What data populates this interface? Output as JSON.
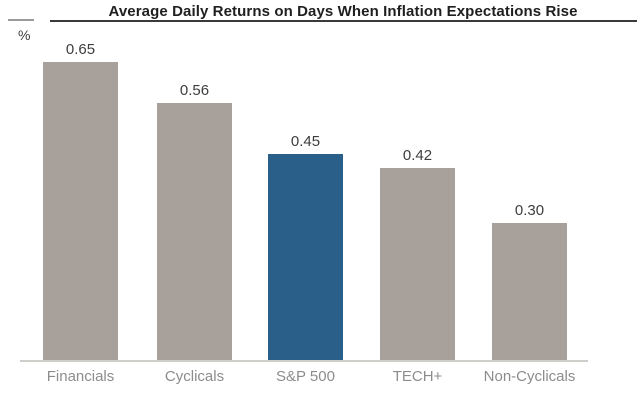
{
  "chart": {
    "title": "Average Daily Returns on Days When Inflation Expectations Rise",
    "unit_label": "%"
  },
  "chart_data": {
    "type": "bar",
    "title": "Average Daily Returns on Days When Inflation Expectations Rise",
    "categories": [
      "Financials",
      "Cyclicals",
      "S&P 500",
      "TECH+",
      "Non-Cyclicals"
    ],
    "values": [
      0.65,
      0.56,
      0.45,
      0.42,
      0.3
    ],
    "value_labels": [
      "0.65",
      "0.56",
      "0.45",
      "0.42",
      "0.30"
    ],
    "xlabel": "",
    "ylabel": "%",
    "ylim": [
      0,
      0.7
    ],
    "grid": false,
    "legend": false,
    "highlight_index": 2,
    "colors": {
      "bar_default": "#a8a09a",
      "bar_highlight": "#2a5f8a",
      "title_text": "#1f1f1f",
      "title_rule": "#3a3a3a",
      "unit_dash": "#9a9a9a",
      "value_label": "#3d3d3d",
      "category_label": "#8c8c8c",
      "axis_line": "#d0cecb"
    }
  }
}
